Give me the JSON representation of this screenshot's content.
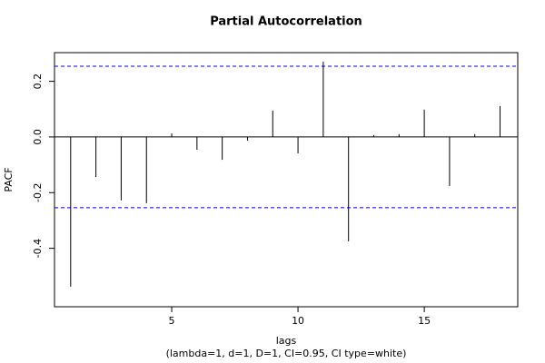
{
  "chart_data": {
    "type": "bar",
    "title": "Partial Autocorrelation",
    "xlabel": "lags",
    "subtitle": "(lambda=1, d=1, D=1, CI=0.95, CI type=white)",
    "ylabel": "PACF",
    "x": [
      1,
      2,
      3,
      4,
      5,
      6,
      7,
      8,
      9,
      10,
      11,
      12,
      13,
      14,
      15,
      16,
      17,
      18
    ],
    "values": [
      -0.538,
      -0.144,
      -0.228,
      -0.238,
      0.013,
      -0.046,
      -0.082,
      -0.013,
      0.095,
      -0.059,
      0.271,
      -0.375,
      0.007,
      0.01,
      0.098,
      -0.176,
      0.01,
      0.111
    ],
    "color": "#000000",
    "confidence_limits": [
      0.254,
      -0.254
    ],
    "confidence_color": "#0000cc",
    "xlim": [
      0.36,
      18.7
    ],
    "ylim": [
      -0.61,
      0.303
    ],
    "xticks": [
      5,
      10,
      15
    ],
    "yticks": [
      -0.4,
      -0.2,
      {
        "value": 0,
        "label": "0.0"
      },
      0.2
    ]
  }
}
